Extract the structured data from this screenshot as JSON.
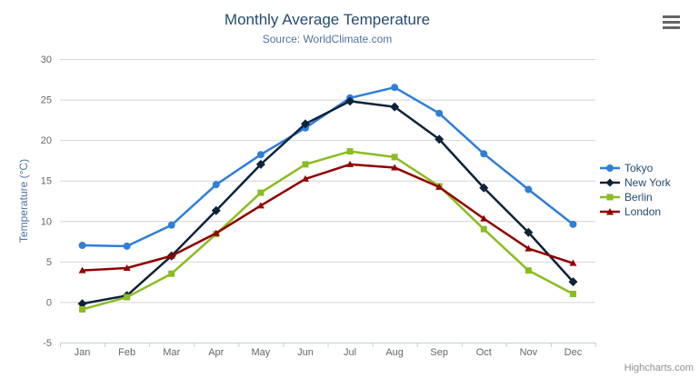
{
  "chart_data": {
    "type": "line",
    "title": "Monthly Average Temperature",
    "subtitle": "Source: WorldClimate.com",
    "categories": [
      "Jan",
      "Feb",
      "Mar",
      "Apr",
      "May",
      "Jun",
      "Jul",
      "Aug",
      "Sep",
      "Oct",
      "Nov",
      "Dec"
    ],
    "series": [
      {
        "name": "Tokyo",
        "color": "#2f7ed8",
        "marker": "circle",
        "values": [
          7.0,
          6.9,
          9.5,
          14.5,
          18.2,
          21.5,
          25.2,
          26.5,
          23.3,
          18.3,
          13.9,
          9.6
        ]
      },
      {
        "name": "New York",
        "color": "#0d233a",
        "marker": "diamond",
        "values": [
          -0.2,
          0.8,
          5.7,
          11.3,
          17.0,
          22.0,
          24.8,
          24.1,
          20.1,
          14.1,
          8.6,
          2.5
        ]
      },
      {
        "name": "Berlin",
        "color": "#8bbc21",
        "marker": "square",
        "values": [
          -0.9,
          0.6,
          3.5,
          8.4,
          13.5,
          17.0,
          18.6,
          17.9,
          14.3,
          9.0,
          3.9,
          1.0
        ]
      },
      {
        "name": "London",
        "color": "#910000",
        "marker": "triangle",
        "values": [
          3.9,
          4.2,
          5.7,
          8.5,
          11.9,
          15.2,
          17.0,
          16.6,
          14.2,
          10.3,
          6.6,
          4.8
        ]
      }
    ],
    "xlabel": "",
    "ylabel": "Temperature (°C)",
    "ylim": [
      -5,
      30
    ],
    "y_ticks": [
      -5,
      0,
      5,
      10,
      15,
      20,
      25,
      30
    ],
    "grid": true,
    "legend_position": "right",
    "colors": {
      "title": "#274b6d",
      "subtitle": "#4d759e",
      "axis_title": "#4d759e",
      "tick_label": "#666666",
      "gridline": "#d4d4d4",
      "axis_line": "#c0d0e0",
      "legend_text": "#274b6d",
      "credits_text": "#909090",
      "menu_icon": "#666666"
    }
  },
  "credits": {
    "label": "Highcharts.com"
  }
}
